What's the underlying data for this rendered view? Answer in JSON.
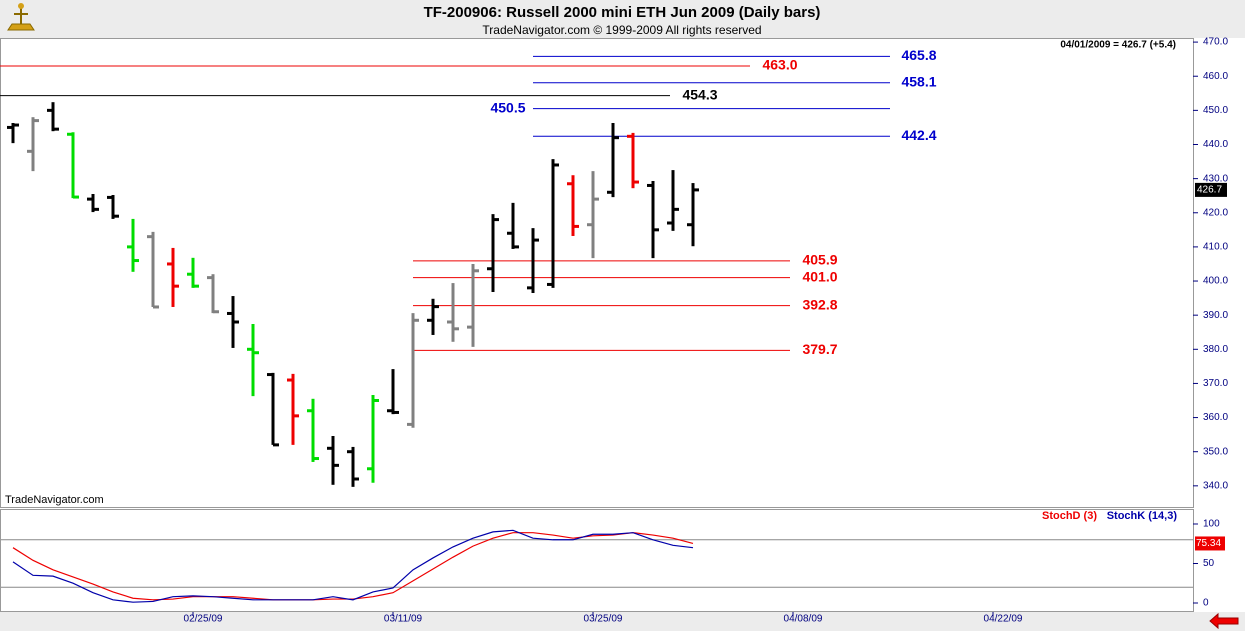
{
  "chart_data": [
    {
      "type": "ohlc",
      "title": "TF-200906:  Russell 2000 mini ETH Jun 2009  (Daily bars)",
      "subtitle": "TradeNavigator.com © 1999-2009 All rights reserved",
      "info": "04/01/2009 = 426.7 (+5.4)",
      "watermark": "TradeNavigator.com",
      "x": [
        0,
        1,
        2,
        3,
        4,
        5,
        6,
        7,
        8,
        9,
        10,
        11,
        12,
        13,
        14,
        15,
        16,
        17,
        18,
        19,
        20,
        21,
        22,
        23,
        24,
        25,
        26,
        27,
        28,
        29,
        30,
        31,
        32,
        33,
        34
      ],
      "open": [
        445,
        438,
        450,
        443,
        424,
        424.5,
        410,
        413,
        405,
        402,
        401,
        390.5,
        380,
        372.6,
        371,
        362,
        351,
        350,
        345,
        362,
        358,
        388.5,
        388,
        386.5,
        403.6,
        414,
        398,
        399,
        428.5,
        416.5,
        426,
        442.4,
        428,
        417,
        416.5
      ],
      "high": [
        446.3,
        448,
        452.4,
        443.6,
        425.5,
        425.2,
        418.2,
        414.4,
        409.7,
        406.8,
        402,
        395.6,
        387.4,
        373.1,
        372.8,
        365.5,
        354.6,
        351.4,
        366.6,
        374.2,
        390.6,
        394.8,
        399.4,
        405,
        419.6,
        422.9,
        415.5,
        435.7,
        431,
        432.2,
        446.3,
        443.4,
        429.3,
        432.5,
        428.7
      ],
      "low": [
        440.4,
        432.2,
        443.9,
        424.3,
        420.2,
        418.2,
        402.7,
        392.4,
        392.4,
        398,
        390.6,
        380.4,
        366.3,
        352,
        352,
        347,
        340.3,
        339.7,
        340.9,
        361,
        357,
        384.2,
        382.2,
        380.7,
        396.8,
        409.4,
        396.5,
        398,
        413.2,
        406.7,
        424.6,
        427.2,
        406.7,
        414.7,
        410.2
      ],
      "close": [
        445.7,
        447,
        444.5,
        424.6,
        421,
        419,
        406,
        392.4,
        398.5,
        398.5,
        391,
        388,
        379,
        352,
        360.5,
        348,
        346,
        342,
        365,
        361.5,
        388.5,
        392.5,
        386,
        403,
        418,
        410,
        412,
        434,
        416,
        424,
        442,
        429,
        415,
        421,
        426.7
      ],
      "colors": [
        "#000000",
        "#808080",
        "#000000",
        "#00dd00",
        "#000000",
        "#000000",
        "#00dd00",
        "#808080",
        "#ee0000",
        "#00dd00",
        "#808080",
        "#000000",
        "#00dd00",
        "#000000",
        "#ee0000",
        "#00dd00",
        "#000000",
        "#000000",
        "#00dd00",
        "#000000",
        "#808080",
        "#000000",
        "#808080",
        "#808080",
        "#000000",
        "#000000",
        "#000000",
        "#000000",
        "#ee0000",
        "#808080",
        "#000000",
        "#ee0000",
        "#000000",
        "#000000",
        "#000000"
      ],
      "levels": [
        {
          "value": 465.8,
          "color": "#0000cc"
        },
        {
          "value": 463,
          "label": "463.0",
          "color": "#ee0000"
        },
        {
          "value": 458.1,
          "color": "#0000cc"
        },
        {
          "value": 454.3,
          "color": "#000000"
        },
        {
          "value": 450.5,
          "color": "#0000cc"
        },
        {
          "value": 442.4,
          "color": "#0000cc"
        },
        {
          "value": 405.9,
          "color": "#ee0000"
        },
        {
          "value": 401,
          "label": "401.0",
          "color": "#ee0000"
        },
        {
          "value": 392.8,
          "color": "#ee0000"
        },
        {
          "value": 379.7,
          "color": "#ee0000"
        }
      ],
      "xlim": [
        -0.6,
        59
      ],
      "ylim": [
        333.8,
        471.2
      ],
      "yticks": [
        {
          "value": 340,
          "label": "340.0"
        },
        {
          "value": 350,
          "label": "350.0"
        },
        {
          "value": 360,
          "label": "360.0"
        },
        {
          "value": 370,
          "label": "370.0"
        },
        {
          "value": 380,
          "label": "380.0"
        },
        {
          "value": 390,
          "label": "390.0"
        },
        {
          "value": 400,
          "label": "400.0"
        },
        {
          "value": 410,
          "label": "410.0"
        },
        {
          "value": 420,
          "label": "420.0"
        },
        {
          "value": 430,
          "label": "430.0"
        },
        {
          "value": 440,
          "label": "440.0"
        },
        {
          "value": 450,
          "label": "450.0"
        },
        {
          "value": 460,
          "label": "460.0"
        },
        {
          "value": 470,
          "label": "470.0"
        }
      ]
    },
    {
      "type": "line",
      "x": [
        0,
        1,
        2,
        3,
        4,
        5,
        6,
        7,
        8,
        9,
        10,
        11,
        12,
        13,
        14,
        15,
        16,
        17,
        18,
        19,
        20,
        21,
        22,
        23,
        24,
        25,
        26,
        27,
        28,
        29,
        30,
        31,
        32,
        33,
        34
      ],
      "series": [
        {
          "name": "StochD (3)",
          "color": "#ee0000",
          "values": [
            70,
            54,
            42,
            33,
            24,
            14,
            6,
            4,
            5,
            8,
            8,
            8,
            6,
            4,
            4,
            4,
            5,
            5,
            8,
            13,
            28,
            43,
            58,
            72,
            82,
            89,
            89,
            86,
            82,
            85,
            86,
            89,
            86,
            82,
            75.34
          ]
        },
        {
          "name": "StochK (14,3)",
          "color": "#0000aa",
          "values": [
            52,
            35,
            34,
            25,
            13,
            4,
            1,
            2,
            8,
            9,
            8,
            6,
            4,
            4,
            4,
            4,
            8,
            4,
            14,
            19,
            42,
            57,
            71,
            82,
            90,
            92,
            82,
            80,
            80,
            87,
            87,
            89,
            80,
            73,
            70
          ]
        }
      ],
      "levels": [
        20,
        80
      ],
      "xlim": [
        -0.6,
        59
      ],
      "ylim": [
        -11.4,
        117.7
      ],
      "yticks": [
        0,
        50,
        100
      ],
      "xticks": [
        {
          "value": 9,
          "label": "02/25/09"
        },
        {
          "value": 19,
          "label": "03/11/09"
        },
        {
          "value": 29,
          "label": "03/25/09"
        },
        {
          "value": 39,
          "label": "04/08/09"
        },
        {
          "value": 49,
          "label": "04/22/09"
        }
      ]
    }
  ]
}
